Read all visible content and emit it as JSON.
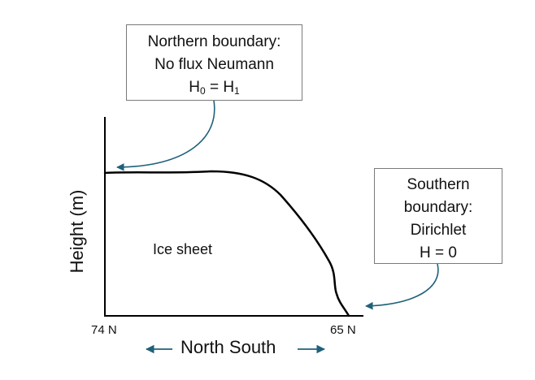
{
  "north_box": {
    "line1": "Northern boundary:",
    "line2": "No flux Neumann",
    "eq_left": "H",
    "eq_left_sub": "0",
    "eq_mid": " = H",
    "eq_right_sub": "1"
  },
  "south_box": {
    "line1": "Southern",
    "line2": "boundary:",
    "line3": "Dirichlet",
    "line4": "H = 0"
  },
  "axes": {
    "ylabel": "Height (m)",
    "xlabel": "North South",
    "tick_left": "74 N",
    "tick_right": "65 N"
  },
  "region_label": "Ice sheet",
  "colors": {
    "arrow": "#1f6179",
    "profile": "#000000",
    "box_border": "#7a7a7a"
  }
}
